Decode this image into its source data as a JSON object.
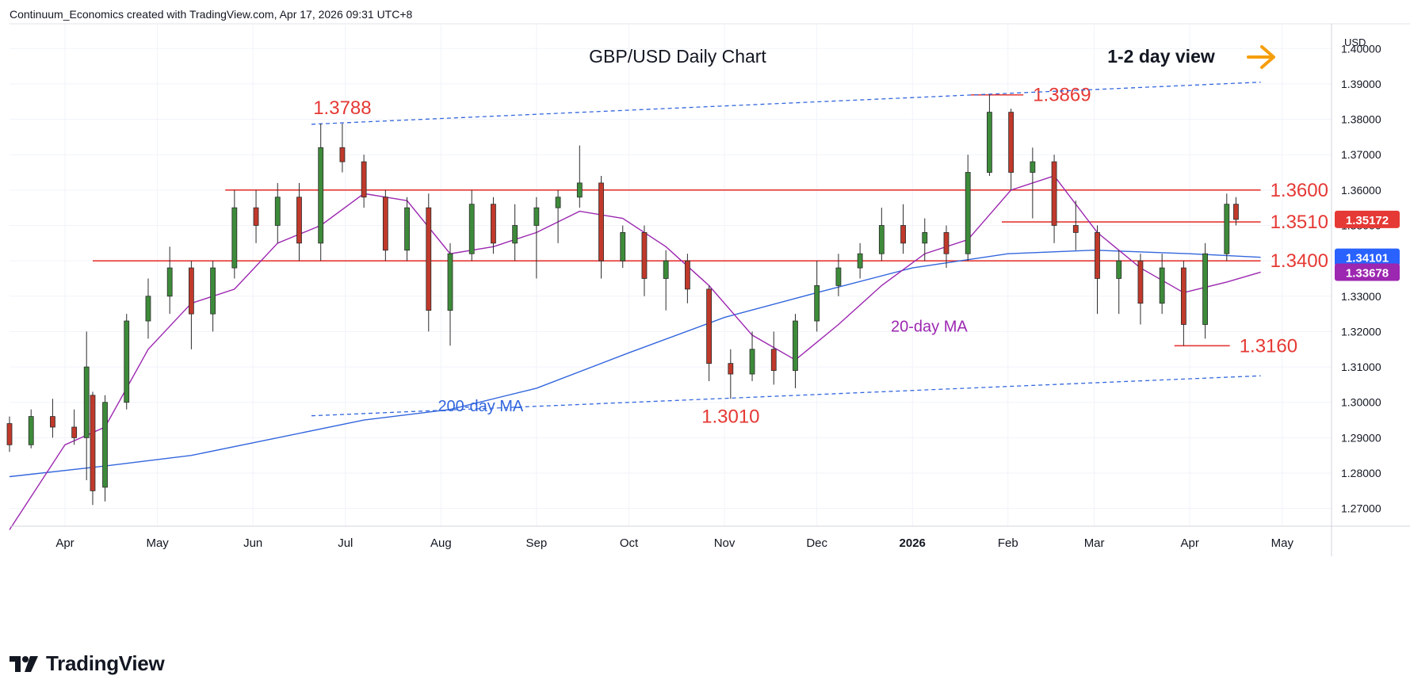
{
  "header": {
    "credit": "Continuum_Economics created with TradingView.com, Apr 17, 2026 09:31 UTC+8"
  },
  "footer": {
    "brand": "TradingView"
  },
  "colors": {
    "up": "#26a69a",
    "down": "#ef5350",
    "candle_body_up": "#3d8b3a",
    "candle_body_down": "#c0392b",
    "resistance": "#e53935",
    "ma20": "#9c27b0",
    "ma200": "#3366dd",
    "channel": "#3366dd",
    "arrow": "#f59e0b",
    "last_price_bg": "#e53935",
    "ma200_bg": "#2962ff",
    "ma20_bg": "#9c27b0"
  },
  "chart_data": {
    "type": "candlestick",
    "title": "GBP/USD Daily Chart",
    "view_label": "1-2 day view",
    "currency_label": "USD",
    "ylim": [
      1.265,
      1.407
    ],
    "y_ticks": [
      "1.27000",
      "1.28000",
      "1.29000",
      "1.30000",
      "1.31000",
      "1.32000",
      "1.33000",
      "1.34000",
      "1.35000",
      "1.36000",
      "1.37000",
      "1.38000",
      "1.39000",
      "1.40000"
    ],
    "x_ticks": [
      "Apr",
      "May",
      "Jun",
      "Jul",
      "Aug",
      "Sep",
      "Oct",
      "Nov",
      "Dec",
      "2026",
      "Feb",
      "Mar",
      "Apr",
      "May"
    ],
    "date_range": [
      "2025-03-14",
      "2026-05-17"
    ],
    "last_price": "1.35172",
    "ma200_value": "1.34101",
    "ma20_value": "1.33678",
    "levels": [
      {
        "label": "1.3600",
        "value": 1.36,
        "from": "2025-05-23",
        "to": "2026-04-24"
      },
      {
        "label": "1.3510",
        "value": 1.351,
        "from": "2026-01-30",
        "to": "2026-04-24"
      },
      {
        "label": "1.3400",
        "value": 1.34,
        "from": "2025-04-10",
        "to": "2026-04-24"
      },
      {
        "label": "1.3160",
        "value": 1.316,
        "from": "2026-03-27",
        "to": "2026-04-14"
      },
      {
        "label": "1.3869",
        "value": 1.3869,
        "from": "2026-01-20",
        "to": "2026-02-06"
      }
    ],
    "annotations": [
      {
        "text": "1.3788",
        "date": "2025-06-30",
        "value": 1.3788
      },
      {
        "text": "1.3010",
        "date": "2025-11-03",
        "value": 1.301
      },
      {
        "text": "20-day MA",
        "date": "2025-12-25",
        "value": 1.32
      },
      {
        "text": "200-day MA",
        "date": "2025-07-31",
        "value": 1.2975
      }
    ],
    "channel_upper": [
      [
        "2025-06-20",
        1.3786
      ],
      [
        "2026-04-24",
        1.3905
      ]
    ],
    "channel_lower": [
      [
        "2025-06-20",
        1.2962
      ],
      [
        "2026-04-24",
        1.3075
      ]
    ],
    "candles": [
      [
        "2025-03-14",
        1.294,
        1.296,
        1.286,
        1.288
      ],
      [
        "2025-03-21",
        1.288,
        1.298,
        1.287,
        1.296
      ],
      [
        "2025-03-28",
        1.296,
        1.301,
        1.29,
        1.293
      ],
      [
        "2025-04-04",
        1.293,
        1.298,
        1.288,
        1.29
      ],
      [
        "2025-04-08",
        1.29,
        1.32,
        1.278,
        1.31
      ],
      [
        "2025-04-10",
        1.302,
        1.303,
        1.271,
        1.275
      ],
      [
        "2025-04-14",
        1.276,
        1.302,
        1.272,
        1.3
      ],
      [
        "2025-04-21",
        1.3,
        1.325,
        1.298,
        1.323
      ],
      [
        "2025-04-28",
        1.323,
        1.335,
        1.318,
        1.33
      ],
      [
        "2025-05-05",
        1.33,
        1.344,
        1.325,
        1.338
      ],
      [
        "2025-05-12",
        1.338,
        1.34,
        1.315,
        1.325
      ],
      [
        "2025-05-19",
        1.325,
        1.34,
        1.32,
        1.338
      ],
      [
        "2025-05-26",
        1.338,
        1.36,
        1.335,
        1.355
      ],
      [
        "2025-06-02",
        1.355,
        1.36,
        1.345,
        1.35
      ],
      [
        "2025-06-09",
        1.35,
        1.362,
        1.345,
        1.358
      ],
      [
        "2025-06-16",
        1.358,
        1.362,
        1.34,
        1.345
      ],
      [
        "2025-06-23",
        1.345,
        1.3788,
        1.34,
        1.372
      ],
      [
        "2025-06-30",
        1.372,
        1.3788,
        1.365,
        1.368
      ],
      [
        "2025-07-07",
        1.368,
        1.37,
        1.355,
        1.358
      ],
      [
        "2025-07-14",
        1.358,
        1.36,
        1.34,
        1.343
      ],
      [
        "2025-07-21",
        1.343,
        1.358,
        1.34,
        1.355
      ],
      [
        "2025-07-28",
        1.355,
        1.359,
        1.32,
        1.326
      ],
      [
        "2025-08-04",
        1.326,
        1.345,
        1.316,
        1.342
      ],
      [
        "2025-08-11",
        1.342,
        1.36,
        1.34,
        1.356
      ],
      [
        "2025-08-18",
        1.356,
        1.358,
        1.342,
        1.345
      ],
      [
        "2025-08-25",
        1.345,
        1.356,
        1.34,
        1.35
      ],
      [
        "2025-09-01",
        1.35,
        1.358,
        1.335,
        1.355
      ],
      [
        "2025-09-08",
        1.355,
        1.36,
        1.345,
        1.358
      ],
      [
        "2025-09-15",
        1.358,
        1.3726,
        1.355,
        1.362
      ],
      [
        "2025-09-22",
        1.362,
        1.364,
        1.335,
        1.34
      ],
      [
        "2025-09-29",
        1.34,
        1.35,
        1.338,
        1.348
      ],
      [
        "2025-10-06",
        1.348,
        1.35,
        1.33,
        1.335
      ],
      [
        "2025-10-13",
        1.335,
        1.343,
        1.326,
        1.34
      ],
      [
        "2025-10-20",
        1.34,
        1.342,
        1.328,
        1.332
      ],
      [
        "2025-10-27",
        1.332,
        1.333,
        1.306,
        1.311
      ],
      [
        "2025-11-03",
        1.311,
        1.315,
        1.301,
        1.308
      ],
      [
        "2025-11-10",
        1.308,
        1.32,
        1.306,
        1.315
      ],
      [
        "2025-11-17",
        1.315,
        1.32,
        1.305,
        1.309
      ],
      [
        "2025-11-24",
        1.309,
        1.325,
        1.304,
        1.323
      ],
      [
        "2025-12-01",
        1.323,
        1.34,
        1.32,
        1.333
      ],
      [
        "2025-12-08",
        1.333,
        1.342,
        1.33,
        1.338
      ],
      [
        "2025-12-15",
        1.338,
        1.345,
        1.335,
        1.342
      ],
      [
        "2025-12-22",
        1.342,
        1.355,
        1.34,
        1.35
      ],
      [
        "2025-12-29",
        1.35,
        1.356,
        1.342,
        1.345
      ],
      [
        "2026-01-05",
        1.345,
        1.352,
        1.34,
        1.348
      ],
      [
        "2026-01-12",
        1.348,
        1.35,
        1.338,
        1.342
      ],
      [
        "2026-01-19",
        1.342,
        1.37,
        1.34,
        1.365
      ],
      [
        "2026-01-26",
        1.365,
        1.3869,
        1.364,
        1.382
      ],
      [
        "2026-02-02",
        1.382,
        1.383,
        1.36,
        1.365
      ],
      [
        "2026-02-09",
        1.365,
        1.372,
        1.352,
        1.368
      ],
      [
        "2026-02-16",
        1.368,
        1.37,
        1.345,
        1.35
      ],
      [
        "2026-02-23",
        1.35,
        1.357,
        1.343,
        1.348
      ],
      [
        "2026-03-02",
        1.348,
        1.35,
        1.325,
        1.335
      ],
      [
        "2026-03-09",
        1.335,
        1.343,
        1.325,
        1.34
      ],
      [
        "2026-03-16",
        1.34,
        1.342,
        1.322,
        1.328
      ],
      [
        "2026-03-23",
        1.328,
        1.342,
        1.325,
        1.338
      ],
      [
        "2026-03-30",
        1.338,
        1.34,
        1.316,
        1.322
      ],
      [
        "2026-04-06",
        1.322,
        1.345,
        1.318,
        1.342
      ],
      [
        "2026-04-13",
        1.342,
        1.359,
        1.34,
        1.356
      ],
      [
        "2026-04-16",
        1.356,
        1.358,
        1.35,
        1.3517
      ]
    ],
    "ma20": [
      [
        "2025-03-14",
        1.264
      ],
      [
        "2025-04-01",
        1.288
      ],
      [
        "2025-04-14",
        1.293
      ],
      [
        "2025-04-28",
        1.315
      ],
      [
        "2025-05-12",
        1.328
      ],
      [
        "2025-05-26",
        1.332
      ],
      [
        "2025-06-09",
        1.345
      ],
      [
        "2025-06-23",
        1.35
      ],
      [
        "2025-07-07",
        1.359
      ],
      [
        "2025-07-21",
        1.357
      ],
      [
        "2025-08-04",
        1.342
      ],
      [
        "2025-08-18",
        1.344
      ],
      [
        "2025-09-01",
        1.348
      ],
      [
        "2025-09-15",
        1.354
      ],
      [
        "2025-09-29",
        1.352
      ],
      [
        "2025-10-13",
        1.344
      ],
      [
        "2025-10-27",
        1.333
      ],
      [
        "2025-11-10",
        1.319
      ],
      [
        "2025-11-24",
        1.312
      ],
      [
        "2025-12-08",
        1.322
      ],
      [
        "2025-12-22",
        1.333
      ],
      [
        "2026-01-05",
        1.342
      ],
      [
        "2026-01-19",
        1.346
      ],
      [
        "2026-02-02",
        1.36
      ],
      [
        "2026-02-16",
        1.364
      ],
      [
        "2026-03-02",
        1.348
      ],
      [
        "2026-03-16",
        1.338
      ],
      [
        "2026-03-30",
        1.331
      ],
      [
        "2026-04-13",
        1.334
      ],
      [
        "2026-04-24",
        1.3368
      ]
    ],
    "ma200": [
      [
        "2025-03-14",
        1.279
      ],
      [
        "2025-04-14",
        1.282
      ],
      [
        "2025-05-12",
        1.285
      ],
      [
        "2025-06-09",
        1.29
      ],
      [
        "2025-07-07",
        1.295
      ],
      [
        "2025-08-04",
        1.298
      ],
      [
        "2025-09-01",
        1.304
      ],
      [
        "2025-10-01",
        1.314
      ],
      [
        "2025-11-01",
        1.324
      ],
      [
        "2025-12-01",
        1.331
      ],
      [
        "2026-01-01",
        1.338
      ],
      [
        "2026-02-01",
        1.342
      ],
      [
        "2026-03-01",
        1.343
      ],
      [
        "2026-04-01",
        1.342
      ],
      [
        "2026-04-24",
        1.341
      ]
    ]
  }
}
